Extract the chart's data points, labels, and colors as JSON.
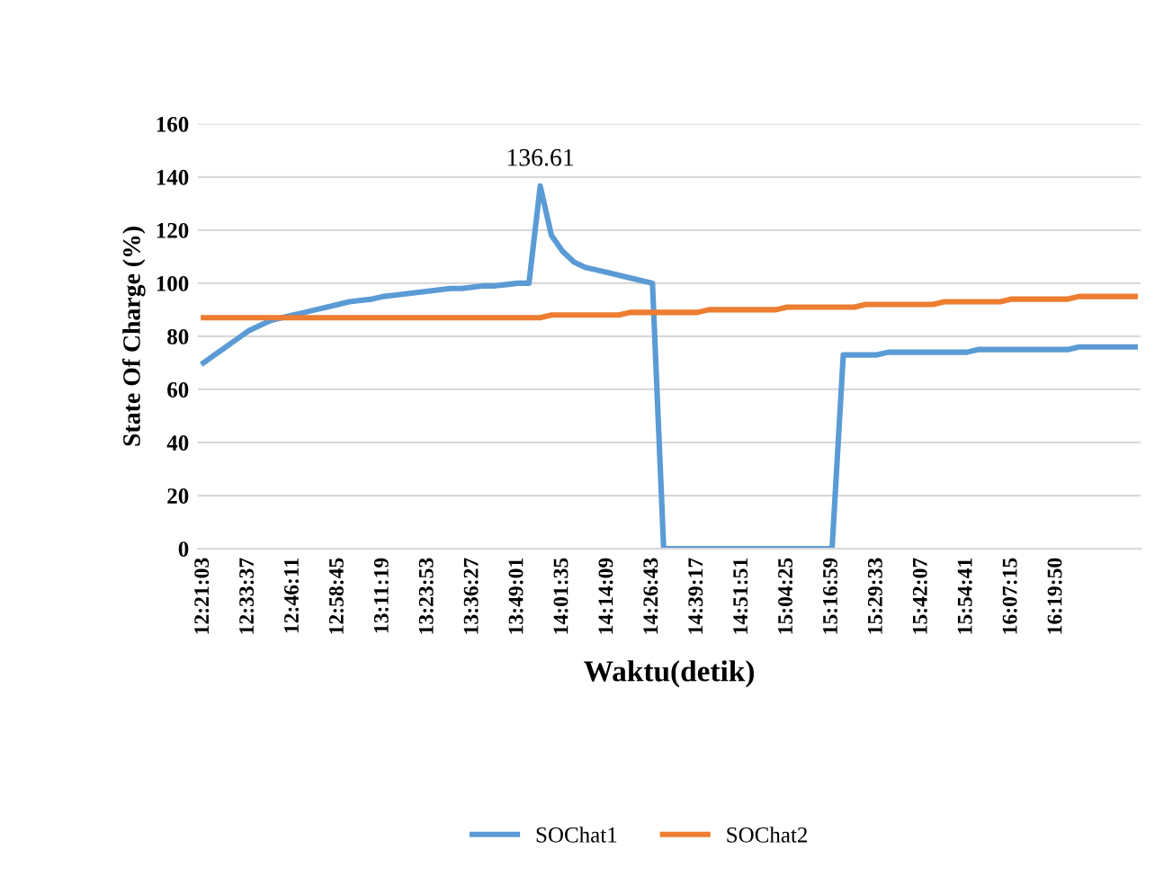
{
  "chart_data": {
    "type": "line",
    "xlabel": "Waktu(detik)",
    "ylabel": "State Of Charge (%)",
    "categories": [
      "12:21:03",
      null,
      null,
      null,
      "12:33:37",
      null,
      null,
      null,
      "12:46:11",
      null,
      null,
      null,
      "12:58:45",
      null,
      null,
      null,
      "13:11:19",
      null,
      null,
      null,
      "13:23:53",
      null,
      null,
      null,
      "13:36:27",
      null,
      null,
      null,
      "13:49:01",
      null,
      null,
      null,
      "14:01:35",
      null,
      null,
      null,
      "14:14:09",
      null,
      null,
      null,
      "14:26:43",
      null,
      null,
      null,
      "14:39:17",
      null,
      null,
      null,
      "14:51:51",
      null,
      null,
      null,
      "15:04:25",
      null,
      null,
      null,
      "15:16:59",
      null,
      null,
      null,
      "15:29:33",
      null,
      null,
      null,
      "15:42:07",
      null,
      null,
      null,
      "15:54:41",
      null,
      null,
      null,
      "16:07:15",
      null,
      null,
      null,
      "16:19:50",
      null,
      null,
      null,
      null,
      null,
      null,
      null
    ],
    "series": [
      {
        "name": "SOChat1",
        "color": "#5b9bd5",
        "values": [
          70,
          73,
          76,
          79,
          82,
          84,
          86,
          87,
          88,
          89,
          90,
          91,
          92,
          93,
          93.5,
          94,
          95,
          95.5,
          96,
          96.5,
          97,
          97.5,
          98,
          98,
          98.5,
          99,
          99,
          99.5,
          100,
          100,
          136.61,
          118,
          112,
          108,
          106,
          105,
          104,
          103,
          102,
          101,
          100,
          0,
          0,
          0,
          0,
          0,
          0,
          0,
          0,
          0,
          0,
          0,
          0,
          0,
          0,
          0,
          0,
          73,
          73,
          73,
          73,
          74,
          74,
          74,
          74,
          74,
          74,
          74,
          74,
          75,
          75,
          75,
          75,
          75,
          75,
          75,
          75,
          75,
          76,
          76,
          76,
          76,
          76,
          76
        ],
        "value_labels": [
          null,
          null,
          null,
          null,
          null,
          null,
          null,
          null,
          null,
          null,
          null,
          null,
          null,
          null,
          null,
          null,
          null,
          null,
          null,
          null,
          null,
          null,
          null,
          null,
          null,
          null,
          null,
          null,
          null,
          null,
          "136.61",
          null,
          null,
          null,
          null,
          null,
          null,
          null,
          null,
          null,
          null,
          null,
          null,
          null,
          null,
          null,
          null,
          null,
          null,
          null,
          null,
          null,
          null,
          null,
          null,
          null,
          null,
          null,
          null,
          null,
          null,
          null,
          null,
          null,
          null,
          null,
          null,
          null,
          null,
          null,
          null,
          null,
          null,
          null,
          null,
          null,
          null,
          null,
          null,
          null,
          null,
          null,
          null,
          null
        ]
      },
      {
        "name": "SOChat2",
        "color": "#ed7d31",
        "values": [
          87,
          87,
          87,
          87,
          87,
          87,
          87,
          87,
          87,
          87,
          87,
          87,
          87,
          87,
          87,
          87,
          87,
          87,
          87,
          87,
          87,
          87,
          87,
          87,
          87,
          87,
          87,
          87,
          87,
          87,
          87,
          88,
          88,
          88,
          88,
          88,
          88,
          88,
          89,
          89,
          89,
          89,
          89,
          89,
          89,
          90,
          90,
          90,
          90,
          90,
          90,
          90,
          91,
          91,
          91,
          91,
          91,
          91,
          91,
          92,
          92,
          92,
          92,
          92,
          92,
          92,
          93,
          93,
          93,
          93,
          93,
          93,
          94,
          94,
          94,
          94,
          94,
          94,
          95,
          95,
          95,
          95,
          95,
          95
        ]
      }
    ],
    "ylim": [
      0,
      160
    ],
    "yticks": [
      0,
      20,
      40,
      60,
      80,
      100,
      120,
      140,
      160
    ],
    "grid": "y",
    "legend": "bottom",
    "line_style": "solid",
    "marker": "none"
  }
}
